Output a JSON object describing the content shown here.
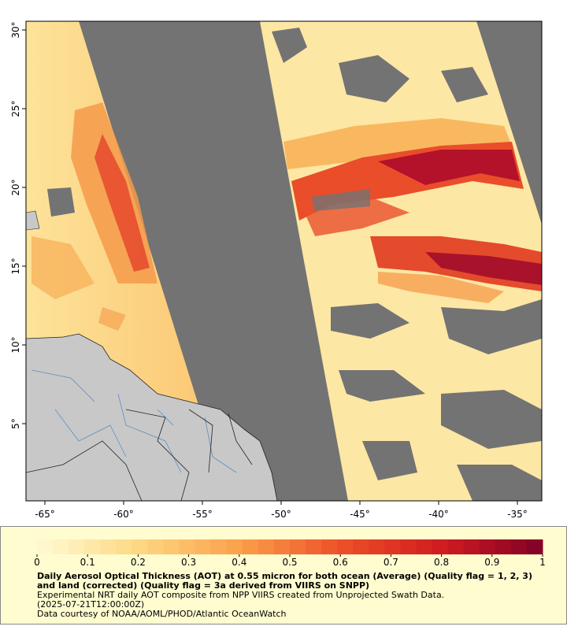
{
  "map": {
    "title": "Daily Aerosol Optical Thickness (AOT) at 0.55 micron for both ocean (Average) (Quality flag = 1, 2, 3) and land (corrected) (Quality flag = 3a derived from VIIRS on SNPP)",
    "notes": [
      "Experimental NRT daily AOT composite from NPP VIIRS created from Unprojected Swath Data.",
      "(2025-07-21T12:00:00Z)",
      "Data courtesy of NOAA/AOML/PHOD/Atlantic OceanWatch"
    ],
    "xlim": [
      -66.2,
      -33.45
    ],
    "ylim": [
      0.1,
      30.55
    ],
    "xticks": [
      {
        "value": -65,
        "label": "-65°"
      },
      {
        "value": -60,
        "label": "-60°"
      },
      {
        "value": -55,
        "label": "-55°"
      },
      {
        "value": -50,
        "label": "-50°"
      },
      {
        "value": -45,
        "label": "-45°"
      },
      {
        "value": -40,
        "label": "-40°"
      },
      {
        "value": -35,
        "label": "-35°"
      }
    ],
    "yticks": [
      {
        "value": 5,
        "label": "5°"
      },
      {
        "value": 10,
        "label": "10°"
      },
      {
        "value": 15,
        "label": "15°"
      },
      {
        "value": 20,
        "label": "20°"
      },
      {
        "value": 25,
        "label": "25°"
      },
      {
        "value": 30,
        "label": "30°"
      }
    ],
    "colorbar": {
      "lim": [
        0,
        1
      ],
      "ticks": [
        0,
        0.1,
        0.2,
        0.3,
        0.4,
        0.5,
        0.6,
        0.7,
        0.8,
        0.9,
        1
      ]
    }
  }
}
